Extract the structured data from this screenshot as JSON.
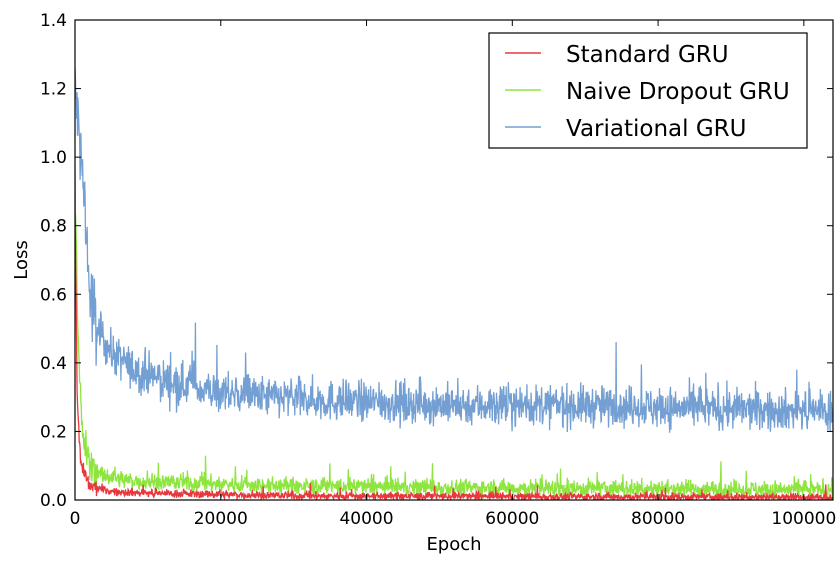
{
  "chart_data": {
    "type": "line",
    "title": "",
    "xlabel": "Epoch",
    "ylabel": "Loss",
    "xlim": [
      0,
      104000
    ],
    "ylim": [
      0,
      1.4
    ],
    "xticks": [
      0,
      20000,
      40000,
      60000,
      80000,
      100000
    ],
    "xtick_labels": [
      "0",
      "20000",
      "40000",
      "60000",
      "80000",
      "100000"
    ],
    "yticks": [
      0,
      0.2,
      0.4,
      0.6,
      0.8,
      1.0,
      1.2,
      1.4
    ],
    "ytick_labels": [
      "0.0",
      "0.2",
      "0.4",
      "0.6",
      "0.8",
      "1.0",
      "1.2",
      "1.4"
    ],
    "grid": false,
    "legend_position": "top-right",
    "series": [
      {
        "name": "Standard GRU",
        "color": "#e8383d",
        "noise_std": 0.006,
        "x": [
          0,
          300,
          800,
          2000,
          5000,
          10000,
          30000,
          60000,
          104000
        ],
        "y": [
          0.85,
          0.3,
          0.1,
          0.04,
          0.025,
          0.02,
          0.012,
          0.01,
          0.008
        ]
      },
      {
        "name": "Naive Dropout GRU",
        "color": "#8ee53f",
        "noise_std": 0.013,
        "x": [
          0,
          500,
          1000,
          2000,
          4000,
          8000,
          15000,
          30000,
          60000,
          104000
        ],
        "y": [
          0.95,
          0.4,
          0.2,
          0.1,
          0.07,
          0.055,
          0.05,
          0.04,
          0.035,
          0.03
        ]
      },
      {
        "name": "Variational GRU",
        "color": "#739fd3",
        "noise_std": 0.03,
        "x": [
          0,
          500,
          1000,
          2000,
          3000,
          5000,
          8000,
          12000,
          16000,
          20000,
          30000,
          40000,
          50000,
          60000,
          70000,
          80000,
          90000,
          104000
        ],
        "y": [
          1.2,
          1.08,
          0.95,
          0.6,
          0.5,
          0.43,
          0.38,
          0.35,
          0.33,
          0.31,
          0.295,
          0.285,
          0.28,
          0.275,
          0.275,
          0.27,
          0.265,
          0.26
        ]
      }
    ]
  }
}
